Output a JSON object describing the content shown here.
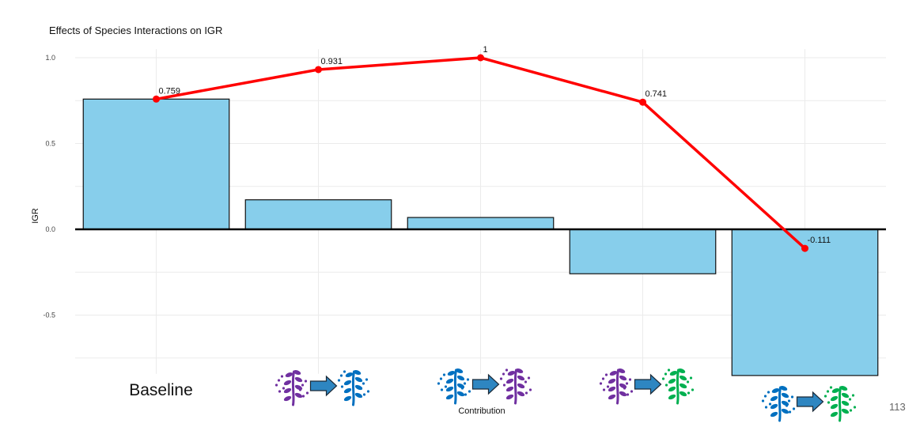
{
  "chart_data": {
    "type": "bar",
    "title": "Effects of Species Interactions on IGR",
    "xlabel": "Contribution",
    "ylabel": "IGR",
    "categories": [
      "Baseline",
      "",
      "",
      "",
      ""
    ],
    "values": [
      0.759,
      0.172,
      0.069,
      -0.259,
      -0.852
    ],
    "cumulative": {
      "values": [
        0.759,
        0.931,
        1,
        0.741,
        -0.111
      ],
      "labels": [
        "0.759",
        "0.931",
        "1",
        "0.741",
        "-0.111"
      ]
    },
    "ylim": [
      -0.75,
      1.05
    ],
    "yticks": [
      1.0,
      0.5,
      0.0,
      -0.5
    ],
    "ytick_labels": [
      "1.0",
      "0.5",
      "0.0",
      "-0.5"
    ],
    "grid": true,
    "colors": {
      "bar_fill": "#87CEEB",
      "bar_stroke": "#111111",
      "line": "#ff0000",
      "grid": "#ebebeb",
      "zero_line": "#000000"
    },
    "category_icons": [
      null,
      {
        "from": "purple",
        "to": "blue"
      },
      {
        "from": "blue",
        "to": "purple"
      },
      {
        "from": "purple",
        "to": "green"
      },
      {
        "from": "blue",
        "to": "green"
      }
    ],
    "icon_colors": {
      "purple": "#7030a0",
      "blue": "#0070c0",
      "green": "#00b050",
      "arrow": "#2e86c1"
    }
  },
  "page_number": "113"
}
